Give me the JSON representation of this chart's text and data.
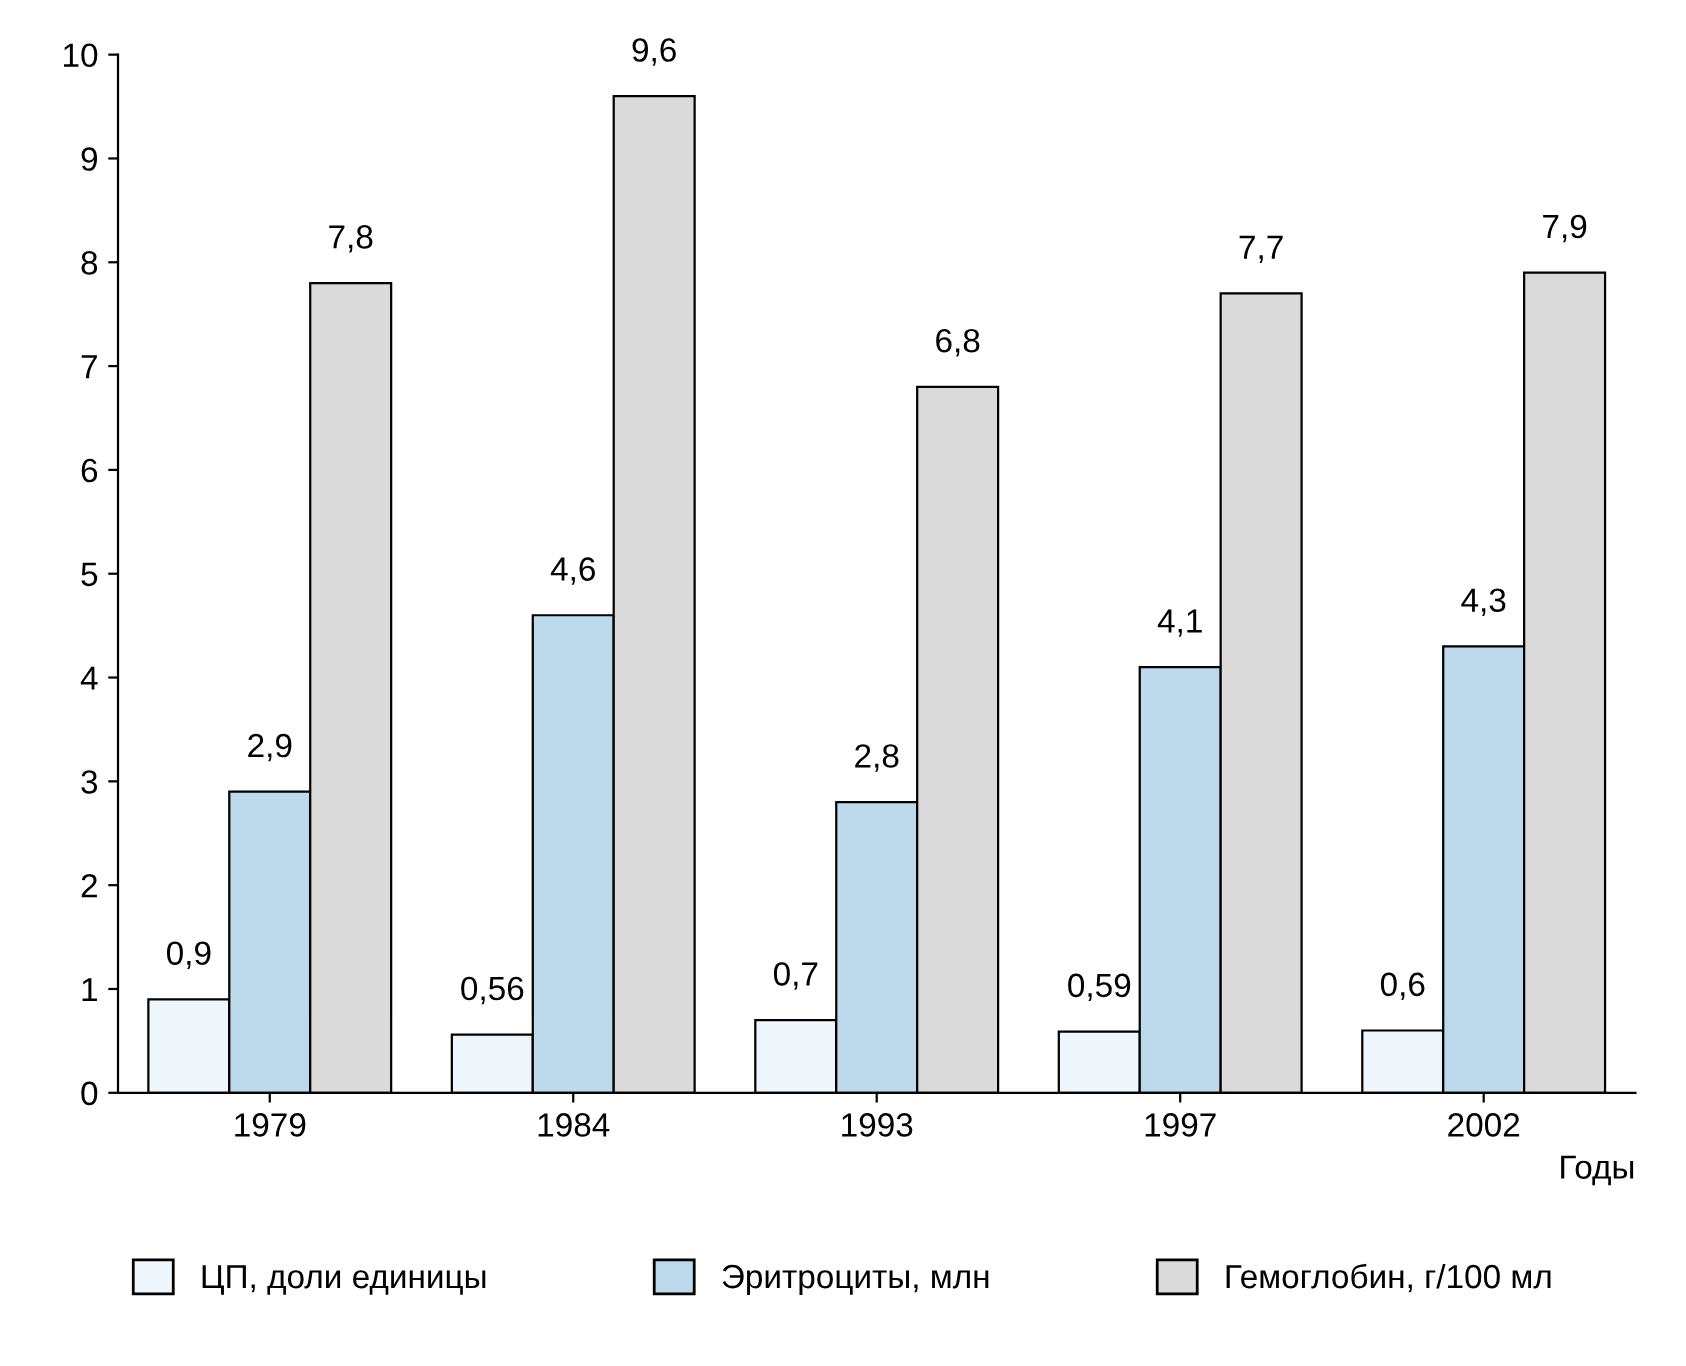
{
  "chart_data": {
    "type": "bar",
    "xlabel": "Годы",
    "categories": [
      "1979",
      "1984",
      "1993",
      "1997",
      "2002"
    ],
    "series": [
      {
        "name": "ЦП, доли единицы",
        "color": "#eef6fc",
        "values": [
          0.9,
          0.56,
          0.7,
          0.59,
          0.6
        ],
        "value_labels": [
          "0,9",
          "0,56",
          "0,7",
          "0,59",
          "0,6"
        ]
      },
      {
        "name": "Эритроциты, млн",
        "color": "#bcdaec",
        "values": [
          2.9,
          4.6,
          2.8,
          4.1,
          4.3
        ],
        "value_labels": [
          "2,9",
          "4,6",
          "2,8",
          "4,1",
          "4,3"
        ]
      },
      {
        "name": "Гемоглобин, г/100 мл",
        "color": "#dadada",
        "values": [
          7.8,
          9.6,
          6.8,
          7.7,
          7.9
        ],
        "value_labels": [
          "7,8",
          "9,6",
          "6,8",
          "7,7",
          "7,9"
        ]
      }
    ],
    "ylim": [
      0,
      10
    ],
    "yticks": [
      0,
      1,
      2,
      3,
      4,
      5,
      6,
      7,
      8,
      9,
      10
    ],
    "grid": false,
    "legend": "bottom"
  }
}
